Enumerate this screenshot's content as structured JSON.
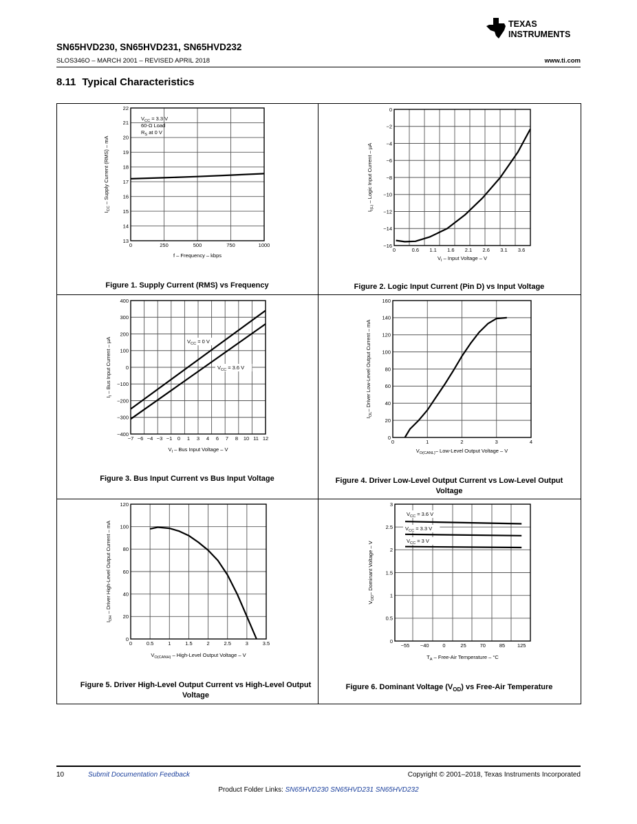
{
  "header": {
    "title": "SN65HVD230, SN65HVD231, SN65HVD232",
    "doc_id": "SLOS346O – MARCH 2001 – REVISED APRIL 2018",
    "url": "www.ti.com",
    "logo_text": [
      "TEXAS",
      "INSTRUMENTS"
    ]
  },
  "section": {
    "number": "8.11",
    "title": "Typical Characteristics"
  },
  "captions": [
    {
      "pre": "Figure 1. Supply Current (RMS) vs Frequency",
      "sub": "",
      "post": ""
    },
    {
      "pre": "Figure 2. Logic Input Current (Pin D) vs Input Voltage",
      "sub": "",
      "post": ""
    },
    {
      "pre": "Figure 3. Bus Input Current vs Bus Input Voltage",
      "sub": "",
      "post": ""
    },
    {
      "pre": "Figure 4. Driver Low-Level Output Current vs Low-Level Output Voltage",
      "sub": "",
      "post": ""
    },
    {
      "pre": "Figure 5. Driver High-Level Output Current vs High-Level Output Voltage",
      "sub": "",
      "post": ""
    },
    {
      "pre": "Figure 6. Dominant Voltage (V",
      "sub": "OD",
      "post": ") vs Free-Air Temperature"
    }
  ],
  "chart_data": [
    {
      "type": "line",
      "xlabel": {
        "pre": "f – Frequency – kbps",
        "sub": "",
        "post": ""
      },
      "ylabel": {
        "pre": "I",
        "sub": "CC",
        "post": " – Supply Current (RMS) – mA"
      },
      "xlim": [
        0,
        1000
      ],
      "ylim": [
        13,
        22
      ],
      "xticks": [
        "0",
        "250",
        "500",
        "750",
        "1000"
      ],
      "yticks": [
        "13",
        "14",
        "15",
        "16",
        "17",
        "18",
        "19",
        "20",
        "21",
        "22"
      ],
      "grid": true,
      "annotations": [
        {
          "pre": "V",
          "sub": "CC",
          "post": " = 3.3 V"
        },
        {
          "pre": "60-Ω Load",
          "sub": "",
          "post": ""
        },
        {
          "pre": "R",
          "sub": "S",
          "post": " at 0 V"
        }
      ],
      "series": [
        {
          "x": [
            0,
            250,
            500,
            750,
            1000
          ],
          "y": [
            17.2,
            17.27,
            17.35,
            17.45,
            17.55
          ]
        }
      ]
    },
    {
      "type": "line",
      "xlabel": {
        "pre": "V",
        "sub": "I",
        "post": " – Input Voltage – V"
      },
      "ylabel": {
        "pre": "I",
        "sub": "I(L)",
        "post": " – Logic Input Current – µA"
      },
      "xlim": [
        0,
        3.85
      ],
      "ylim": [
        -16,
        0
      ],
      "xticks": [
        "0",
        "0.6",
        "1.1",
        "1.6",
        "2.1",
        "2.6",
        "3.1",
        "3.6"
      ],
      "yticks": [
        "-16",
        "-14",
        "-12",
        "-10",
        "-8",
        "-6",
        "-4",
        "-2",
        "0"
      ],
      "grid": true,
      "annotations": [],
      "series": [
        {
          "x": [
            0.05,
            0.3,
            0.6,
            1.0,
            1.5,
            2.0,
            2.5,
            3.0,
            3.5,
            3.85
          ],
          "y": [
            -15.4,
            -15.55,
            -15.5,
            -15.0,
            -14.0,
            -12.4,
            -10.4,
            -8.0,
            -5.0,
            -2.3
          ]
        }
      ]
    },
    {
      "type": "line",
      "xlabel": {
        "pre": "V",
        "sub": "I",
        "post": " – Bus Input Voltage – V"
      },
      "ylabel": {
        "pre": "I",
        "sub": "I",
        "post": " – Bus Input Current – µA"
      },
      "xlim": [
        -7,
        12
      ],
      "ylim": [
        -400,
        400
      ],
      "xticks": [
        "-7",
        "-6",
        "-4",
        "-3",
        "-1",
        "0",
        "1",
        "3",
        "4",
        "6",
        "7",
        "8",
        "10",
        "11",
        "12"
      ],
      "yticks": [
        "-400",
        "-300",
        "-200",
        "-100",
        "0",
        "100",
        "200",
        "300",
        "400"
      ],
      "grid": true,
      "annotations": [
        {
          "pre": "V",
          "sub": "CC",
          "post": " = 0 V"
        },
        {
          "pre": "V",
          "sub": "CC",
          "post": " = 3.6 V"
        }
      ],
      "series": [
        {
          "name": "VCC = 0 V",
          "x": [
            -7,
            12
          ],
          "y": [
            -250,
            340
          ]
        },
        {
          "name": "VCC = 3.6 V",
          "x": [
            -7,
            12
          ],
          "y": [
            -310,
            260
          ]
        }
      ]
    },
    {
      "type": "line",
      "xlabel": {
        "pre": "V",
        "sub": "O(CANL)",
        "post": "– Low-Level Output Voltage – V"
      },
      "ylabel": {
        "pre": "I",
        "sub": "OL",
        "post": "– Driver Low-Level Output Current – mA"
      },
      "xlim": [
        0,
        4
      ],
      "ylim": [
        0,
        160
      ],
      "xticks": [
        "0",
        "1",
        "2",
        "3",
        "4"
      ],
      "yticks": [
        "0",
        "20",
        "40",
        "60",
        "80",
        "100",
        "120",
        "140",
        "160"
      ],
      "grid": true,
      "annotations": [],
      "series": [
        {
          "x": [
            0.35,
            0.5,
            0.75,
            1.0,
            1.25,
            1.5,
            1.75,
            2.0,
            2.25,
            2.5,
            2.75,
            3.0,
            3.3
          ],
          "y": [
            0,
            10,
            20,
            32,
            47,
            62,
            78,
            95,
            110,
            123,
            133,
            139,
            140
          ]
        }
      ]
    },
    {
      "type": "line",
      "xlabel": {
        "pre": "V",
        "sub": "O(CANH)",
        "post": " – High-Level Output Voltage – V"
      },
      "ylabel": {
        "pre": "I",
        "sub": "OH",
        "post": " – Driver High-Level Output Current – mA"
      },
      "xlim": [
        0,
        3.5
      ],
      "ylim": [
        0,
        120
      ],
      "xticks": [
        "0",
        "0.5",
        "1",
        "1.5",
        "2",
        "2.5",
        "3",
        "3.5"
      ],
      "yticks": [
        "0",
        "20",
        "40",
        "60",
        "80",
        "100",
        "120"
      ],
      "grid": true,
      "annotations": [],
      "series": [
        {
          "x": [
            0.5,
            0.7,
            1.0,
            1.25,
            1.5,
            1.75,
            2.0,
            2.25,
            2.5,
            2.75,
            3.0,
            3.25
          ],
          "y": [
            98,
            99.5,
            98.5,
            96,
            92,
            86,
            79,
            70,
            57,
            40,
            20,
            0
          ]
        }
      ]
    },
    {
      "type": "line",
      "xlabel": {
        "pre": "T",
        "sub": "A",
        "post": " – Free-Air Temperature – °C"
      },
      "ylabel": {
        "pre": "V",
        "sub": "OD",
        "post": "– Dominant Voltage – V"
      },
      "xlim": [
        -55,
        125
      ],
      "ylim": [
        0,
        3
      ],
      "xticks": [
        "-55",
        "-40",
        "0",
        "25",
        "70",
        "85",
        "125"
      ],
      "yticks": [
        "0",
        "0.5",
        "1",
        "1.5",
        "2",
        "2.5",
        "3"
      ],
      "grid": true,
      "annotations": [
        {
          "pre": "V",
          "sub": "CC",
          "post": " = 3.6 V"
        },
        {
          "pre": "V",
          "sub": "CC",
          "post": " = 3.3 V"
        },
        {
          "pre": "V",
          "sub": "CC",
          "post": " = 3 V"
        }
      ],
      "series": [
        {
          "name": "VCC = 3.6 V",
          "x": [
            -55,
            125
          ],
          "y": [
            2.62,
            2.57
          ]
        },
        {
          "name": "VCC = 3.3 V",
          "x": [
            -55,
            125
          ],
          "y": [
            2.34,
            2.31
          ]
        },
        {
          "name": "VCC = 3 V",
          "x": [
            -55,
            125
          ],
          "y": [
            2.07,
            2.05
          ]
        }
      ]
    }
  ],
  "footer": {
    "page_number": "10",
    "feedback_link": "Submit Documentation Feedback",
    "copyright": "Copyright © 2001–2018, Texas Instruments Incorporated",
    "product_links_label": "Product Folder Links:",
    "product_links": [
      "SN65HVD230",
      "SN65HVD231",
      "SN65HVD232"
    ]
  }
}
